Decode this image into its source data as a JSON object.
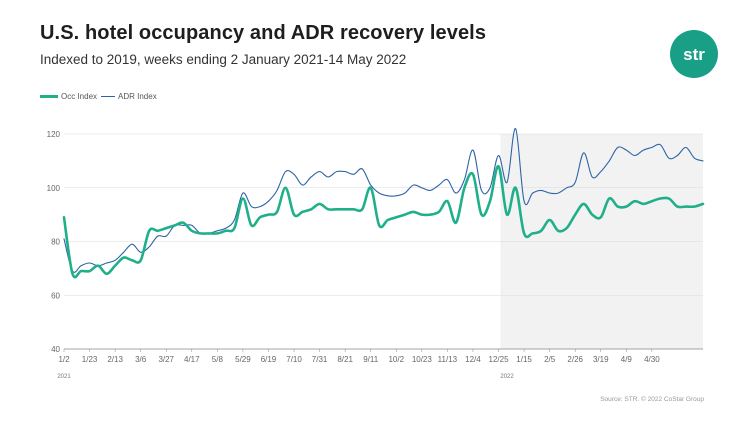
{
  "header": {
    "title": "U.S. hotel occupancy and ADR recovery levels",
    "subtitle": "Indexed to 2019, weeks ending 2 January 2021-14 May 2022"
  },
  "logo": {
    "text": "str",
    "color": "#1a9f87"
  },
  "source": "Source: STR. © 2022 CoStar Group",
  "colors": {
    "occ": "#1fb08a",
    "adr": "#2e64a6",
    "shade": "#f2f2f2",
    "grid": "#d9d9d9",
    "axis": "#888888"
  },
  "chart_data": {
    "type": "line",
    "title": "U.S. hotel occupancy and ADR recovery levels",
    "subtitle": "Indexed to 2019, weeks ending 2 January 2021-14 May 2022",
    "ylim": [
      40,
      120
    ],
    "y_ticks": [
      40,
      60,
      80,
      100,
      120
    ],
    "x_tick_labels": [
      "1/2",
      "1/23",
      "2/13",
      "3/6",
      "3/27",
      "4/17",
      "5/8",
      "5/29",
      "6/19",
      "7/10",
      "7/31",
      "8/21",
      "9/11",
      "10/2",
      "10/23",
      "11/13",
      "12/4",
      "12/25",
      "1/15",
      "2/5",
      "2/26",
      "3/19",
      "4/9",
      "4/30"
    ],
    "year_labels": [
      {
        "label": "2021",
        "week": 1
      },
      {
        "label": "2022",
        "week": 53
      }
    ],
    "shaded_from_week": 52,
    "grid": true,
    "legend_position": "top-left",
    "x_weeks": [
      1,
      2,
      3,
      4,
      5,
      6,
      7,
      8,
      9,
      10,
      11,
      12,
      13,
      14,
      15,
      16,
      17,
      18,
      19,
      20,
      21,
      22,
      23,
      24,
      25,
      26,
      27,
      28,
      29,
      30,
      31,
      32,
      33,
      34,
      35,
      36,
      37,
      38,
      39,
      40,
      41,
      42,
      43,
      44,
      45,
      46,
      47,
      48,
      49,
      50,
      51,
      52,
      53,
      54,
      55,
      56,
      57,
      58,
      59,
      60,
      61,
      62,
      63,
      64,
      65,
      66,
      67,
      68,
      69,
      70,
      71,
      72,
      73,
      74,
      75,
      76
    ],
    "series": [
      {
        "name": "Occ Index",
        "color": "#1fb08a",
        "values": [
          89,
          68,
          69,
          69,
          71,
          68,
          71,
          74,
          73,
          73,
          84,
          84,
          85,
          86,
          87,
          84,
          83,
          83,
          83,
          84,
          85,
          96,
          86,
          89,
          90,
          91,
          100,
          90,
          91,
          92,
          94,
          92,
          92,
          92,
          92,
          92,
          100,
          86,
          88,
          89,
          90,
          91,
          90,
          90,
          91,
          95,
          87,
          100,
          105,
          90,
          95,
          108,
          90,
          100,
          83,
          83,
          84,
          88,
          84,
          85,
          90,
          94,
          90,
          89,
          96,
          93,
          93,
          95,
          94,
          95,
          96,
          96,
          93,
          93,
          93,
          94
        ]
      },
      {
        "name": "ADR Index",
        "color": "#2e64a6",
        "values": [
          81,
          69,
          71,
          72,
          71,
          72,
          73,
          76,
          79,
          76,
          78,
          82,
          82,
          86,
          86,
          86,
          83,
          83,
          84,
          85,
          88,
          98,
          93,
          93,
          95,
          99,
          106,
          105,
          101,
          104,
          106,
          104,
          106,
          106,
          105,
          107,
          101,
          98,
          97,
          97,
          98,
          101,
          100,
          99,
          101,
          103,
          98,
          103,
          114,
          99,
          100,
          112,
          102,
          122,
          95,
          98,
          99,
          98,
          98,
          100,
          102,
          113,
          104,
          106,
          110,
          115,
          114,
          112,
          114,
          115,
          116,
          111,
          112,
          115,
          111,
          110
        ]
      }
    ]
  }
}
